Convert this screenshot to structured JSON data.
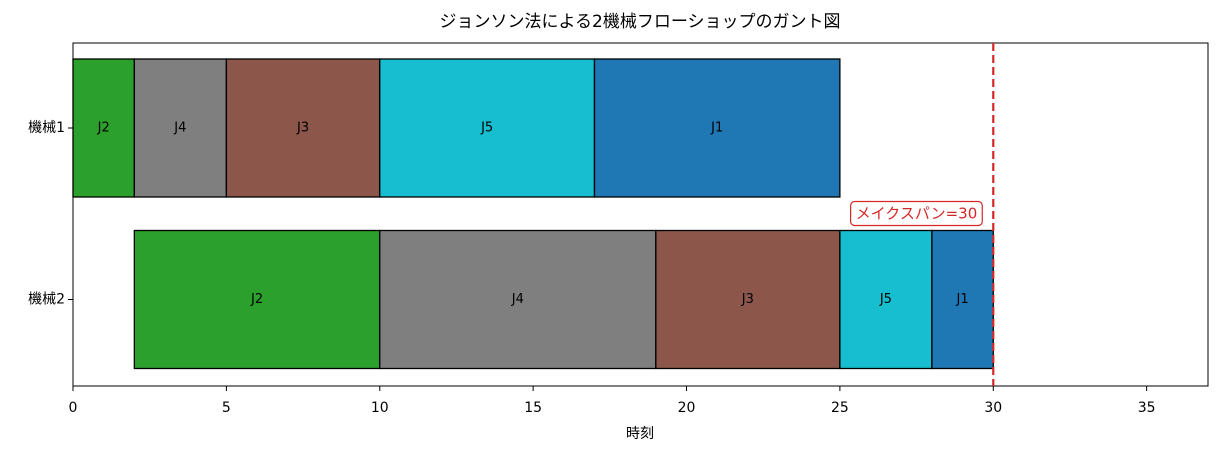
{
  "chart_data": {
    "type": "gantt",
    "title": "ジョンソン法による2機械フローショップのガント図",
    "xlabel": "時刻",
    "rows": [
      {
        "name": "機械1",
        "tasks": [
          {
            "label": "J2",
            "start": 0,
            "end": 2,
            "color": "#2ca02c"
          },
          {
            "label": "J4",
            "start": 2,
            "end": 5,
            "color": "#7f7f7f"
          },
          {
            "label": "J3",
            "start": 5,
            "end": 10,
            "color": "#8c564b"
          },
          {
            "label": "J5",
            "start": 10,
            "end": 17,
            "color": "#17becf"
          },
          {
            "label": "J1",
            "start": 17,
            "end": 25,
            "color": "#1f77b4"
          }
        ]
      },
      {
        "name": "機械2",
        "tasks": [
          {
            "label": "J2",
            "start": 2,
            "end": 10,
            "color": "#2ca02c"
          },
          {
            "label": "J4",
            "start": 10,
            "end": 19,
            "color": "#7f7f7f"
          },
          {
            "label": "J3",
            "start": 19,
            "end": 25,
            "color": "#8c564b"
          },
          {
            "label": "J5",
            "start": 25,
            "end": 28,
            "color": "#17becf"
          },
          {
            "label": "J1",
            "start": 28,
            "end": 30,
            "color": "#1f77b4"
          }
        ]
      }
    ],
    "makespan": 30,
    "makespan_label": "メイクスパン=30",
    "makespan_color": "#d62728",
    "xlim": [
      0,
      37
    ],
    "xticks": [
      0,
      5,
      10,
      15,
      20,
      25,
      30,
      35
    ]
  }
}
